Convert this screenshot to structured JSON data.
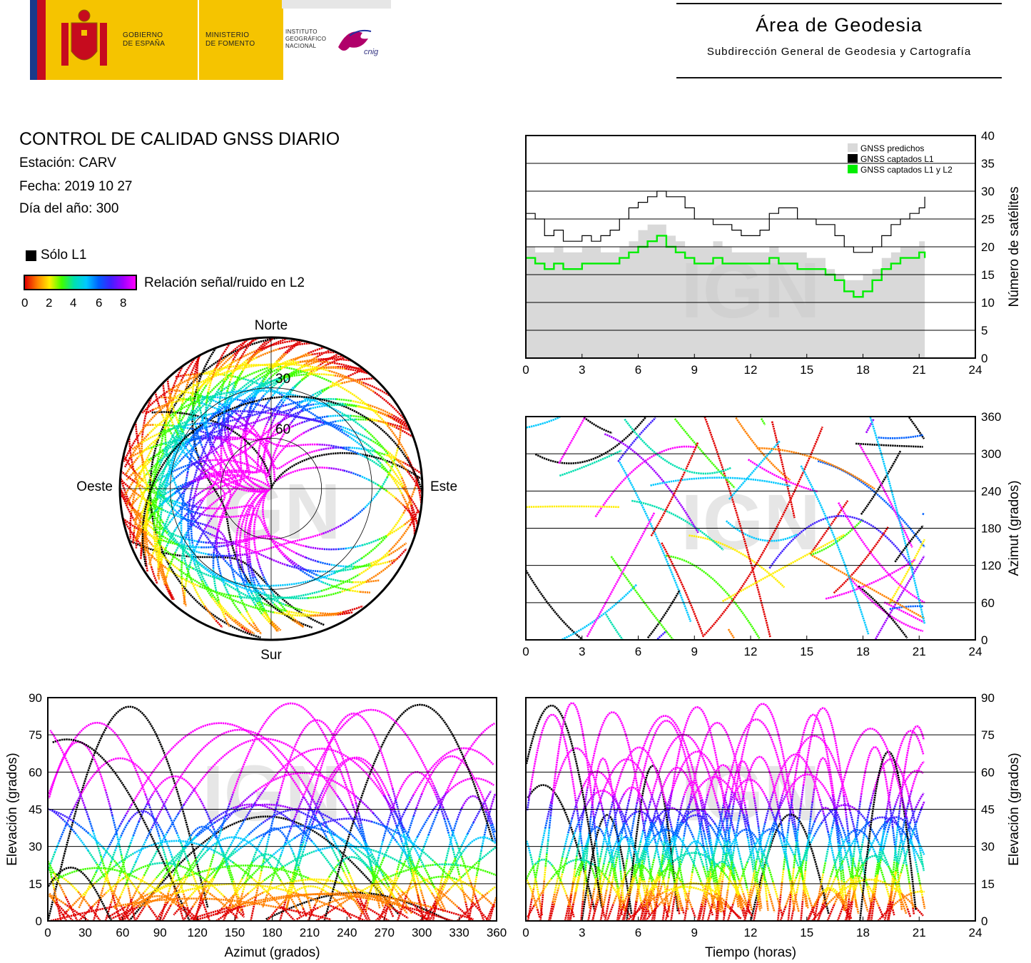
{
  "header": {
    "gov_label_1": "GOBIERNO",
    "gov_label_2": "DE ESPAÑA",
    "min_label_1": "MINISTERIO",
    "min_label_2": "DE FOMENTO",
    "ign_label_1": "INSTITUTO",
    "ign_label_2": "GEOGRÁFICO",
    "ign_label_3": "NACIONAL",
    "cnig_logo": "cnig",
    "area_title": "Área de Geodesia",
    "area_subtitle": "Subdirección General de Geodesia y Cartografía"
  },
  "info": {
    "title": "CONTROL DE CALIDAD GNSS DIARIO",
    "station": "Estación: CARV",
    "date": "Fecha: 2019 10 27",
    "doy": "Día del año: 300"
  },
  "legend": {
    "l1_only": "Sólo L1",
    "snr_label": "Relación señal/ruido en L2",
    "snr_ticks": [
      "0",
      "2",
      "4",
      "6",
      "8"
    ]
  },
  "watermark": "IGN",
  "colors": {
    "snr_scale": [
      "#e00000",
      "#ff8000",
      "#ffee00",
      "#40ff00",
      "#00e0b0",
      "#00c8ff",
      "#0060ff",
      "#4020ff",
      "#a000ff",
      "#ff00ff"
    ],
    "predicted": "#d9d9d9",
    "l1": "#000000",
    "l1l2": "#00ee00"
  },
  "chart_data": [
    {
      "type": "area",
      "id": "satellites",
      "x": [
        0,
        0.5,
        1,
        1.5,
        2,
        2.5,
        3,
        3.5,
        4,
        4.5,
        5,
        5.5,
        6,
        6.5,
        7,
        7.5,
        8,
        8.5,
        9,
        9.5,
        10,
        10.5,
        11,
        11.5,
        12,
        12.5,
        13,
        13.5,
        14,
        14.5,
        15,
        15.5,
        16,
        16.5,
        17,
        17.5,
        18,
        18.5,
        19,
        19.5,
        20,
        20.5,
        21,
        21.3
      ],
      "series": [
        {
          "name": "GNSS predichos",
          "values": [
            20,
            19,
            19,
            20,
            19,
            19,
            20,
            20,
            19,
            19,
            20,
            21,
            23,
            24,
            24,
            22,
            21,
            20,
            20,
            20,
            21,
            20,
            19,
            19,
            19,
            19,
            20,
            19,
            19,
            19,
            18,
            18,
            16,
            15,
            14,
            14,
            15,
            16,
            18,
            19,
            20,
            20,
            21,
            22
          ]
        },
        {
          "name": "GNSS captados L1",
          "values": [
            26,
            25,
            22,
            23,
            21,
            21,
            22,
            21,
            22,
            23,
            25,
            27,
            28,
            29,
            30,
            29,
            29,
            27,
            25,
            25,
            24,
            24,
            23,
            22,
            22,
            23,
            26,
            27,
            27,
            25,
            25,
            24,
            24,
            22,
            20,
            19,
            19,
            20,
            22,
            24,
            25,
            26,
            27,
            29
          ]
        },
        {
          "name": "GNSS captados L1 y L2",
          "values": [
            18,
            17,
            16,
            17,
            16,
            16,
            17,
            17,
            17,
            17,
            18,
            19,
            20,
            21,
            22,
            20,
            19,
            18,
            17,
            17,
            18,
            17,
            17,
            17,
            17,
            17,
            18,
            17,
            17,
            16,
            16,
            16,
            15,
            14,
            12,
            11,
            12,
            14,
            16,
            17,
            18,
            18,
            19,
            18
          ]
        }
      ],
      "xlim": [
        0,
        24
      ],
      "ylim": [
        0,
        40
      ],
      "xticks": [
        "0",
        "3",
        "6",
        "9",
        "12",
        "15",
        "18",
        "21",
        "24"
      ],
      "yticks": [
        "0",
        "5",
        "10",
        "15",
        "20",
        "25",
        "30",
        "35",
        "40"
      ],
      "ylabel": "Número de satélites",
      "legend": "top-right"
    },
    {
      "type": "scatter",
      "id": "azimuth-time",
      "xlim": [
        0,
        24
      ],
      "ylim": [
        0,
        360
      ],
      "xticks": [
        "0",
        "3",
        "6",
        "9",
        "12",
        "15",
        "18",
        "21",
        "24"
      ],
      "yticks": [
        "0",
        "60",
        "120",
        "180",
        "240",
        "300",
        "360"
      ],
      "ylabel": "Azimut (grados)"
    },
    {
      "type": "scatter",
      "id": "skyplot",
      "directions": {
        "north": "Norte",
        "south": "Sur",
        "east": "Este",
        "west": "Oeste"
      },
      "rings": [
        "30",
        "60"
      ]
    },
    {
      "type": "scatter",
      "id": "elevation-azimuth",
      "xlim": [
        0,
        360
      ],
      "ylim": [
        0,
        90
      ],
      "xticks": [
        "0",
        "30",
        "60",
        "90",
        "120",
        "150",
        "180",
        "210",
        "240",
        "270",
        "300",
        "330",
        "360"
      ],
      "yticks": [
        "0",
        "15",
        "30",
        "45",
        "60",
        "75",
        "90"
      ],
      "xlabel": "Azimut (grados)",
      "ylabel": "Elevación (grados)"
    },
    {
      "type": "scatter",
      "id": "elevation-time",
      "xlim": [
        0,
        24
      ],
      "ylim": [
        0,
        90
      ],
      "xticks": [
        "0",
        "3",
        "6",
        "9",
        "12",
        "15",
        "18",
        "21",
        "24"
      ],
      "yticks": [
        "0",
        "15",
        "30",
        "45",
        "60",
        "75",
        "90"
      ],
      "xlabel": "Tiempo (horas)",
      "ylabel": "Elevación (grados)"
    }
  ]
}
